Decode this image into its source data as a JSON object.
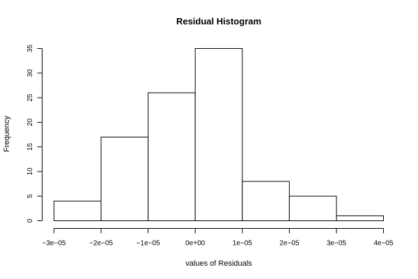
{
  "chart_data": {
    "type": "bar",
    "title": "Residual Histogram",
    "xlabel": "values of Residuals",
    "ylabel": "Frequency",
    "bins": [
      {
        "from": -3e-05,
        "to": -2e-05,
        "count": 4
      },
      {
        "from": -2e-05,
        "to": -1e-05,
        "count": 17
      },
      {
        "from": -1e-05,
        "to": 0,
        "count": 26
      },
      {
        "from": 0,
        "to": 1e-05,
        "count": 35
      },
      {
        "from": 1e-05,
        "to": 2e-05,
        "count": 8
      },
      {
        "from": 2e-05,
        "to": 3e-05,
        "count": 5
      },
      {
        "from": 3e-05,
        "to": 4e-05,
        "count": 1
      }
    ],
    "xlim": [
      -3e-05,
      4e-05
    ],
    "ylim": [
      0,
      35
    ],
    "x_ticks": [
      {
        "value": -3e-05,
        "label": "−3e−05"
      },
      {
        "value": -2e-05,
        "label": "−2e−05"
      },
      {
        "value": -1e-05,
        "label": "−1e−05"
      },
      {
        "value": 0,
        "label": "0e+00"
      },
      {
        "value": 1e-05,
        "label": "1e−05"
      },
      {
        "value": 2e-05,
        "label": "2e−05"
      },
      {
        "value": 3e-05,
        "label": "3e−05"
      },
      {
        "value": 4e-05,
        "label": "4e−05"
      }
    ],
    "y_ticks": [
      {
        "value": 0,
        "label": "0"
      },
      {
        "value": 5,
        "label": "5"
      },
      {
        "value": 10,
        "label": "10"
      },
      {
        "value": 15,
        "label": "15"
      },
      {
        "value": 20,
        "label": "20"
      },
      {
        "value": 25,
        "label": "25"
      },
      {
        "value": 30,
        "label": "30"
      },
      {
        "value": 35,
        "label": "35"
      }
    ],
    "grid": false,
    "bar_fill": "#ffffff",
    "bar_stroke": "#000000"
  }
}
